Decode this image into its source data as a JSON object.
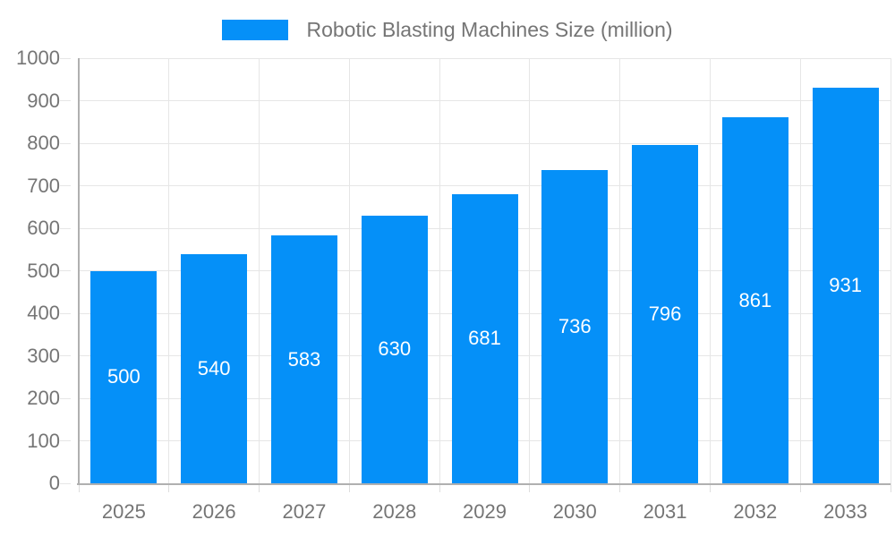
{
  "chart_data": {
    "type": "bar",
    "title": "",
    "legend": {
      "position": "top-center",
      "label": "Robotic Blasting Machines Size (million)"
    },
    "categories": [
      "2025",
      "2026",
      "2027",
      "2028",
      "2029",
      "2030",
      "2031",
      "2032",
      "2033"
    ],
    "series": [
      {
        "name": "Robotic Blasting Machines Size (million)",
        "values": [
          500,
          540,
          583,
          630,
          681,
          736,
          796,
          861,
          931
        ]
      }
    ],
    "xlabel": "",
    "ylabel": "",
    "ylim": [
      0,
      1000
    ],
    "ytick_step": 100,
    "yticks": [
      0,
      100,
      200,
      300,
      400,
      500,
      600,
      700,
      800,
      900,
      1000
    ],
    "grid": true,
    "value_labels": {
      "position": "inside-center",
      "color": "#ffffff"
    },
    "colors": {
      "bar": "#0590F8",
      "axis_text": "#757575",
      "legend_text": "#757575",
      "gridline": "#E6E6E6",
      "axis_line": "#B0B0B0",
      "tick": "#DEDEDE",
      "background": "#FFFFFF"
    }
  }
}
